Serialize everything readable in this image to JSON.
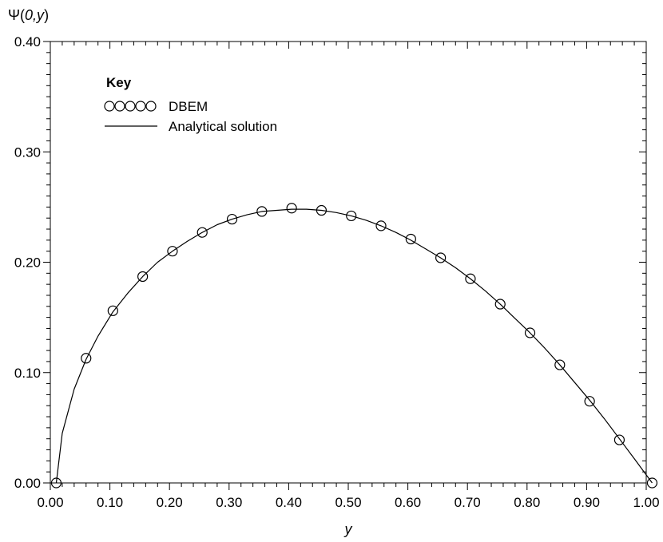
{
  "chart_data": {
    "type": "line",
    "title": "",
    "xlabel": "y",
    "ylabel_prefix": "Ψ(",
    "ylabel_args": "0,y",
    "ylabel_suffix": ")",
    "xlim": [
      0.0,
      1.0
    ],
    "ylim": [
      0.0,
      0.4
    ],
    "x_ticks": [
      0.0,
      0.1,
      0.2,
      0.3,
      0.4,
      0.5,
      0.6,
      0.7,
      0.8,
      0.9,
      1.0
    ],
    "x_tick_labels": [
      "0.00",
      "0.10",
      "0.20",
      "0.30",
      "0.40",
      "0.50",
      "0.60",
      "0.70",
      "0.80",
      "0.90",
      "1.00"
    ],
    "y_ticks": [
      0.0,
      0.1,
      0.2,
      0.3,
      0.4
    ],
    "y_tick_labels": [
      "0.00",
      "0.10",
      "0.20",
      "0.30",
      "0.40"
    ],
    "grid": false,
    "legend": {
      "title": "Key",
      "position": "top-left",
      "entries": [
        "DBEM",
        "Analytical solution"
      ]
    },
    "series": [
      {
        "name": "DBEM",
        "style": "markers",
        "marker": "open-circle",
        "x": [
          0.01,
          0.06,
          0.105,
          0.155,
          0.205,
          0.255,
          0.305,
          0.355,
          0.405,
          0.455,
          0.505,
          0.555,
          0.605,
          0.655,
          0.705,
          0.755,
          0.805,
          0.855,
          0.905,
          0.955,
          1.01
        ],
        "y": [
          0.0,
          0.113,
          0.156,
          0.187,
          0.21,
          0.227,
          0.239,
          0.246,
          0.249,
          0.247,
          0.242,
          0.233,
          0.221,
          0.204,
          0.185,
          0.162,
          0.136,
          0.107,
          0.074,
          0.039,
          0.0
        ]
      },
      {
        "name": "Analytical solution",
        "style": "line",
        "x": [
          0.01,
          0.02,
          0.04,
          0.06,
          0.08,
          0.105,
          0.13,
          0.155,
          0.18,
          0.205,
          0.23,
          0.255,
          0.28,
          0.305,
          0.33,
          0.355,
          0.38,
          0.405,
          0.43,
          0.455,
          0.48,
          0.505,
          0.53,
          0.555,
          0.58,
          0.605,
          0.63,
          0.655,
          0.68,
          0.705,
          0.73,
          0.755,
          0.78,
          0.805,
          0.83,
          0.855,
          0.88,
          0.905,
          0.93,
          0.955,
          0.98,
          1.01
        ],
        "y": [
          0.0,
          0.045,
          0.085,
          0.112,
          0.133,
          0.155,
          0.172,
          0.187,
          0.2,
          0.21,
          0.219,
          0.227,
          0.234,
          0.239,
          0.243,
          0.246,
          0.247,
          0.248,
          0.248,
          0.247,
          0.245,
          0.242,
          0.238,
          0.233,
          0.227,
          0.22,
          0.212,
          0.204,
          0.195,
          0.185,
          0.174,
          0.162,
          0.149,
          0.136,
          0.122,
          0.107,
          0.091,
          0.075,
          0.058,
          0.04,
          0.022,
          0.0
        ]
      }
    ]
  }
}
